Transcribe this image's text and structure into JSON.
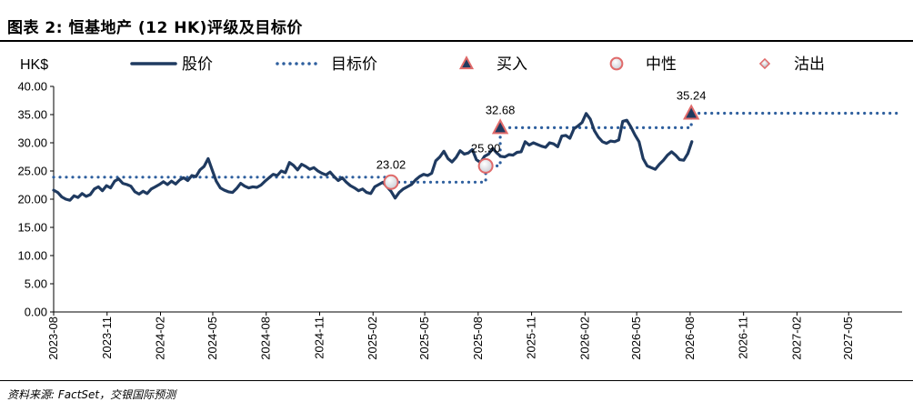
{
  "figure_title": "图表 2: 恒基地产 (12 HK)评级及目标价",
  "source_note": "资料来源: FactSet，交银国际预测",
  "chart_data": {
    "type": "line",
    "ylabel": "HK$",
    "ylim": [
      0,
      40
    ],
    "y_ticks": [
      "0.00",
      "5.00",
      "10.00",
      "15.00",
      "20.00",
      "25.00",
      "30.00",
      "35.00",
      "40.00"
    ],
    "x_range": [
      "2023-08",
      "2027-08"
    ],
    "x_ticks": [
      "2023-08",
      "2023-11",
      "2024-02",
      "2024-05",
      "2024-08",
      "2024-11",
      "2025-02",
      "2025-05",
      "2025-08",
      "2025-11",
      "2026-02",
      "2026-05",
      "2026-08",
      "2026-11",
      "2027-02",
      "2027-05"
    ],
    "legend_position": "top",
    "colors": {
      "price": "#1f3a60",
      "target": "#2e5f9e",
      "marker_edge": "#e06a6a"
    },
    "series": [
      {
        "name": "股价",
        "style": "solid",
        "points": [
          [
            "2023-08-01",
            21.6
          ],
          [
            "2023-08-08",
            21.2
          ],
          [
            "2023-08-15",
            20.4
          ],
          [
            "2023-08-22",
            20.0
          ],
          [
            "2023-08-29",
            19.8
          ],
          [
            "2023-09-05",
            20.6
          ],
          [
            "2023-09-12",
            20.3
          ],
          [
            "2023-09-19",
            21.0
          ],
          [
            "2023-09-26",
            20.5
          ],
          [
            "2023-10-03",
            20.8
          ],
          [
            "2023-10-10",
            21.8
          ],
          [
            "2023-10-17",
            22.2
          ],
          [
            "2023-10-24",
            21.5
          ],
          [
            "2023-10-31",
            22.4
          ],
          [
            "2023-11-07",
            22.0
          ],
          [
            "2023-11-14",
            23.2
          ],
          [
            "2023-11-21",
            23.6
          ],
          [
            "2023-11-28",
            22.8
          ],
          [
            "2023-12-05",
            22.6
          ],
          [
            "2023-12-12",
            22.3
          ],
          [
            "2023-12-19",
            21.3
          ],
          [
            "2023-12-26",
            20.9
          ],
          [
            "2024-01-02",
            21.4
          ],
          [
            "2024-01-09",
            21.0
          ],
          [
            "2024-01-16",
            21.8
          ],
          [
            "2024-01-23",
            22.2
          ],
          [
            "2024-01-30",
            22.6
          ],
          [
            "2024-02-06",
            23.1
          ],
          [
            "2024-02-13",
            22.6
          ],
          [
            "2024-02-20",
            23.2
          ],
          [
            "2024-02-27",
            22.7
          ],
          [
            "2024-03-05",
            23.4
          ],
          [
            "2024-03-12",
            23.8
          ],
          [
            "2024-03-19",
            23.3
          ],
          [
            "2024-03-26",
            24.2
          ],
          [
            "2024-04-02",
            24.0
          ],
          [
            "2024-04-09",
            25.2
          ],
          [
            "2024-04-16",
            25.8
          ],
          [
            "2024-04-23",
            27.2
          ],
          [
            "2024-04-30",
            25.2
          ],
          [
            "2024-05-07",
            23.2
          ],
          [
            "2024-05-14",
            22.0
          ],
          [
            "2024-05-21",
            21.6
          ],
          [
            "2024-05-28",
            21.3
          ],
          [
            "2024-06-04",
            21.2
          ],
          [
            "2024-06-11",
            21.9
          ],
          [
            "2024-06-18",
            22.8
          ],
          [
            "2024-06-25",
            22.3
          ],
          [
            "2024-07-02",
            22.0
          ],
          [
            "2024-07-09",
            22.2
          ],
          [
            "2024-07-16",
            22.1
          ],
          [
            "2024-07-23",
            22.5
          ],
          [
            "2024-07-30",
            23.2
          ],
          [
            "2024-08-06",
            23.8
          ],
          [
            "2024-08-13",
            24.4
          ],
          [
            "2024-08-20",
            24.2
          ],
          [
            "2024-08-27",
            25.0
          ],
          [
            "2024-09-03",
            24.7
          ],
          [
            "2024-09-10",
            26.5
          ],
          [
            "2024-09-17",
            26.0
          ],
          [
            "2024-09-24",
            25.2
          ],
          [
            "2024-10-01",
            26.2
          ],
          [
            "2024-10-08",
            25.8
          ],
          [
            "2024-10-15",
            25.3
          ],
          [
            "2024-10-22",
            25.6
          ],
          [
            "2024-10-29",
            25.0
          ],
          [
            "2024-11-05",
            24.6
          ],
          [
            "2024-11-12",
            24.3
          ],
          [
            "2024-11-19",
            24.8
          ],
          [
            "2024-11-26",
            24.0
          ],
          [
            "2024-12-03",
            23.3
          ],
          [
            "2024-12-10",
            23.8
          ],
          [
            "2024-12-17",
            23.0
          ],
          [
            "2024-12-24",
            22.4
          ],
          [
            "2024-12-31",
            22.0
          ],
          [
            "2025-01-07",
            21.5
          ],
          [
            "2025-01-14",
            21.8
          ],
          [
            "2025-01-21",
            21.2
          ],
          [
            "2025-01-28",
            21.0
          ],
          [
            "2025-02-04",
            22.2
          ],
          [
            "2025-02-11",
            22.6
          ],
          [
            "2025-02-18",
            23.0
          ],
          [
            "2025-02-25",
            22.2
          ],
          [
            "2025-03-04",
            21.4
          ],
          [
            "2025-03-11",
            20.2
          ],
          [
            "2025-03-18",
            21.2
          ],
          [
            "2025-03-25",
            21.8
          ],
          [
            "2025-04-01",
            22.2
          ],
          [
            "2025-04-08",
            22.6
          ],
          [
            "2025-04-15",
            23.4
          ],
          [
            "2025-04-22",
            24.0
          ],
          [
            "2025-04-29",
            24.4
          ],
          [
            "2025-05-06",
            24.2
          ],
          [
            "2025-05-13",
            24.6
          ],
          [
            "2025-05-20",
            26.8
          ],
          [
            "2025-05-27",
            27.5
          ],
          [
            "2025-06-03",
            28.5
          ],
          [
            "2025-06-10",
            27.2
          ],
          [
            "2025-06-17",
            26.6
          ],
          [
            "2025-06-24",
            27.4
          ],
          [
            "2025-07-01",
            28.6
          ],
          [
            "2025-07-08",
            28.0
          ],
          [
            "2025-07-15",
            28.2
          ],
          [
            "2025-07-22",
            28.8
          ],
          [
            "2025-07-29",
            27.0
          ],
          [
            "2025-08-05",
            26.5
          ],
          [
            "2025-08-12",
            27.6
          ],
          [
            "2025-08-19",
            28.0
          ],
          [
            "2025-08-26",
            29.0
          ],
          [
            "2025-09-02",
            28.2
          ],
          [
            "2025-09-09",
            27.6
          ],
          [
            "2025-09-16",
            27.5
          ],
          [
            "2025-09-23",
            27.9
          ],
          [
            "2025-09-30",
            27.8
          ],
          [
            "2025-10-07",
            28.3
          ],
          [
            "2025-10-14",
            28.4
          ],
          [
            "2025-10-21",
            30.2
          ],
          [
            "2025-10-28",
            29.6
          ],
          [
            "2025-11-04",
            30.0
          ],
          [
            "2025-11-11",
            29.7
          ],
          [
            "2025-11-18",
            29.4
          ],
          [
            "2025-11-25",
            29.2
          ],
          [
            "2025-12-02",
            30.0
          ],
          [
            "2025-12-09",
            29.8
          ],
          [
            "2025-12-16",
            29.3
          ],
          [
            "2025-12-23",
            31.2
          ],
          [
            "2025-12-30",
            31.3
          ],
          [
            "2026-01-06",
            30.8
          ],
          [
            "2026-01-13",
            32.5
          ],
          [
            "2026-01-20",
            33.0
          ],
          [
            "2026-01-27",
            33.6
          ],
          [
            "2026-02-03",
            35.2
          ],
          [
            "2026-02-10",
            34.2
          ],
          [
            "2026-02-17",
            32.2
          ],
          [
            "2026-02-24",
            31.0
          ],
          [
            "2026-03-03",
            30.2
          ],
          [
            "2026-03-10",
            29.9
          ],
          [
            "2026-03-17",
            30.3
          ],
          [
            "2026-03-24",
            30.2
          ],
          [
            "2026-03-31",
            30.5
          ],
          [
            "2026-04-07",
            33.8
          ],
          [
            "2026-04-14",
            34.0
          ],
          [
            "2026-04-21",
            32.8
          ],
          [
            "2026-04-28",
            31.4
          ],
          [
            "2026-05-05",
            30.2
          ],
          [
            "2026-05-12",
            27.2
          ],
          [
            "2026-05-19",
            25.9
          ],
          [
            "2026-05-26",
            25.6
          ],
          [
            "2026-06-02",
            25.3
          ],
          [
            "2026-06-09",
            26.2
          ],
          [
            "2026-06-16",
            26.9
          ],
          [
            "2026-06-23",
            27.8
          ],
          [
            "2026-06-30",
            28.4
          ],
          [
            "2026-07-07",
            27.8
          ],
          [
            "2026-07-14",
            27.0
          ],
          [
            "2026-07-21",
            26.9
          ],
          [
            "2026-07-28",
            28.1
          ],
          [
            "2026-08-04",
            30.2
          ]
        ]
      },
      {
        "name": "目标价",
        "style": "dotted",
        "points": [
          [
            "2023-08-01",
            23.9
          ],
          [
            "2025-03-04",
            23.9
          ],
          [
            "2025-03-04",
            23.02
          ],
          [
            "2025-08-14",
            23.02
          ],
          [
            "2025-08-14",
            25.9
          ],
          [
            "2025-09-08",
            25.9
          ],
          [
            "2025-09-08",
            32.68
          ],
          [
            "2026-08-03",
            32.68
          ],
          [
            "2026-08-03",
            35.24
          ],
          [
            "2027-08-01",
            35.24
          ]
        ]
      }
    ],
    "legend_items": [
      {
        "name": "股价",
        "symbol": "line"
      },
      {
        "name": "目标价",
        "symbol": "dotted"
      },
      {
        "name": "买入",
        "symbol": "triangle"
      },
      {
        "name": "中性",
        "symbol": "circle"
      },
      {
        "name": "沽出",
        "symbol": "diamond"
      }
    ],
    "rating_markers": [
      {
        "date": "2025-03-04",
        "value": 23.02,
        "rating": "中性",
        "label": "23.02"
      },
      {
        "date": "2025-08-14",
        "value": 25.9,
        "rating": "中性",
        "label": "25.90"
      },
      {
        "date": "2025-09-08",
        "value": 32.68,
        "rating": "买入",
        "label": "32.68"
      },
      {
        "date": "2026-08-03",
        "value": 35.24,
        "rating": "买入",
        "label": "35.24"
      }
    ]
  }
}
